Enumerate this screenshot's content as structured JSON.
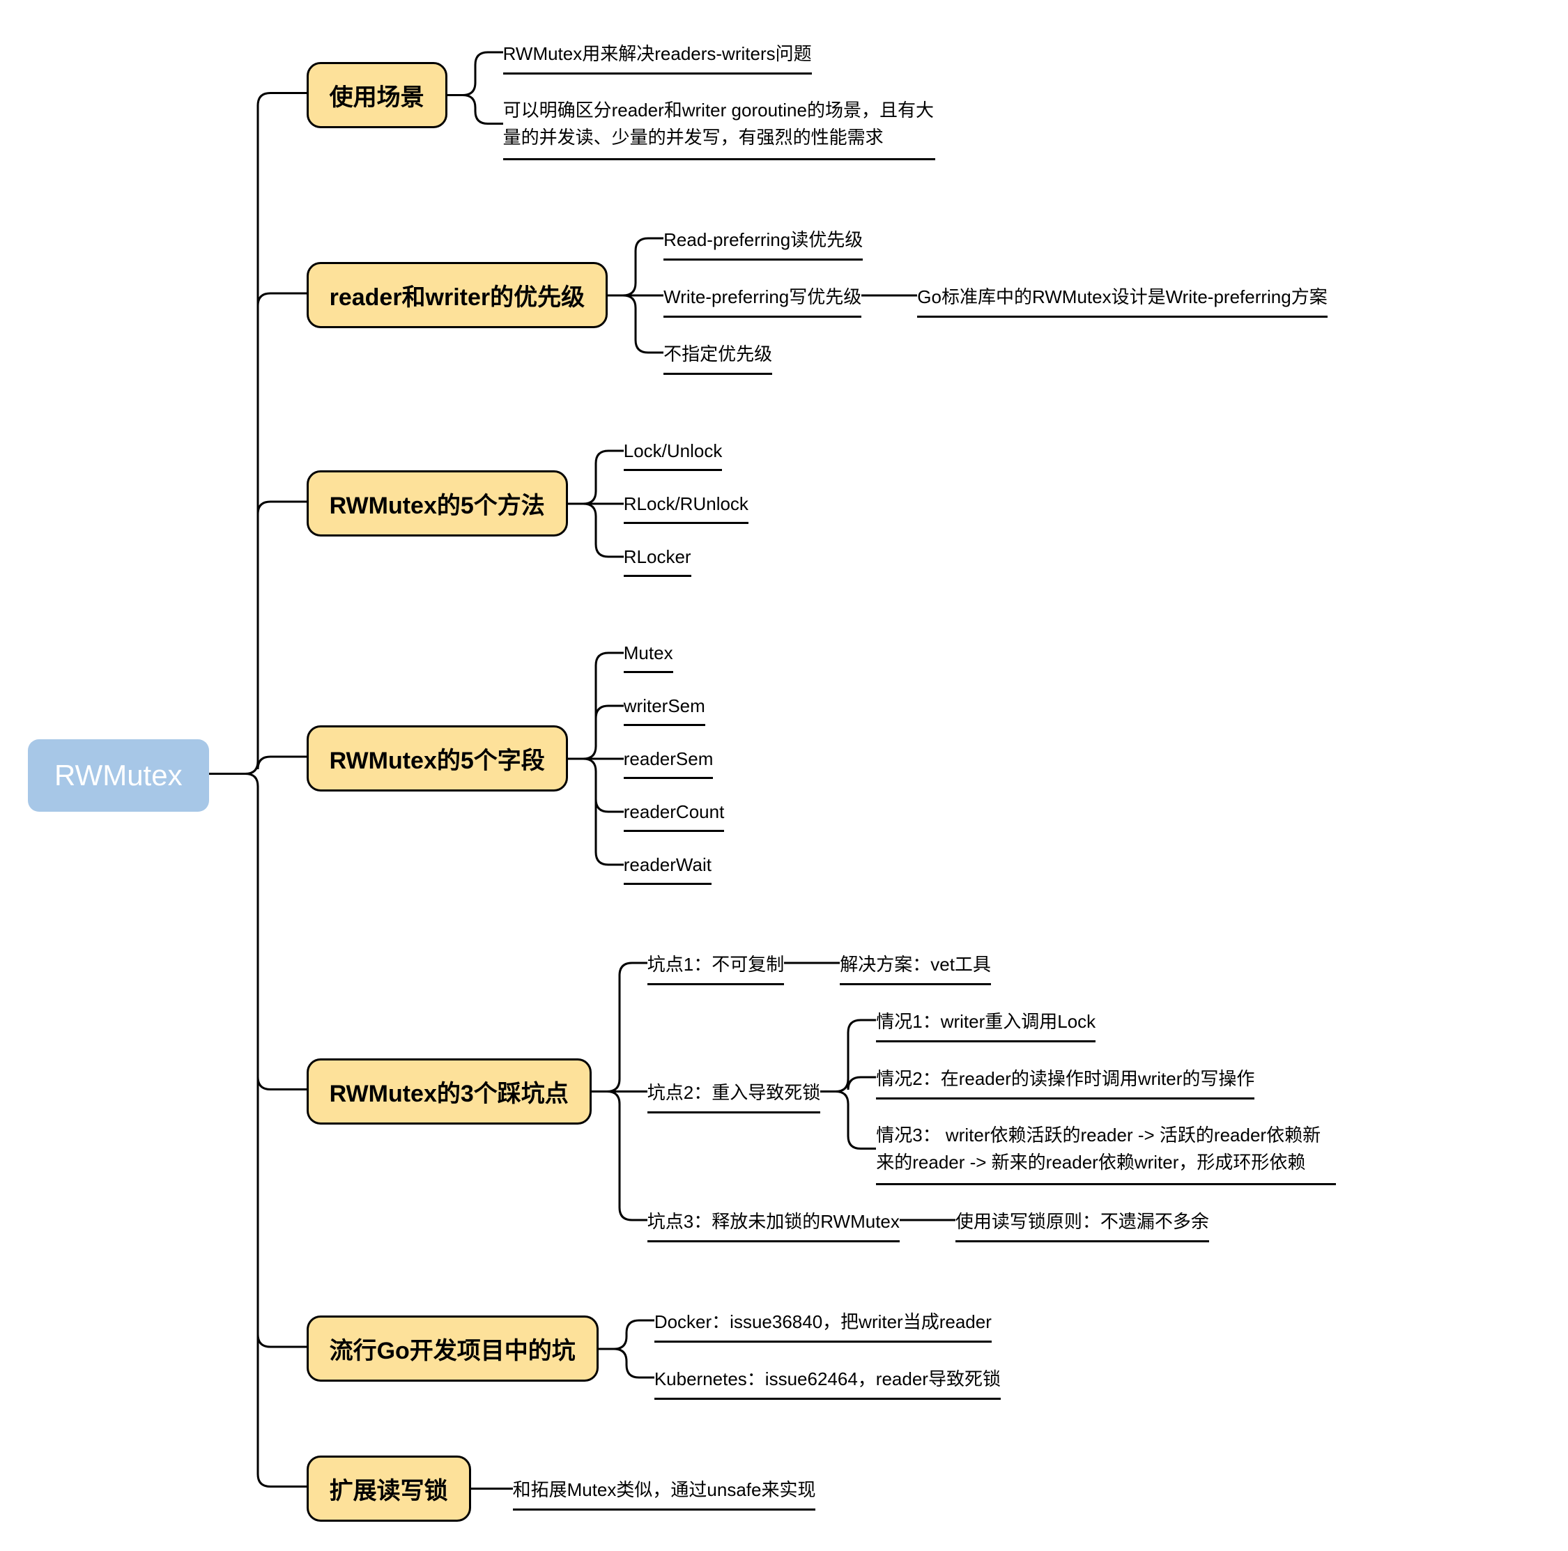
{
  "colors": {
    "root_bg": "#a7c7e7",
    "root_text": "#ffffff",
    "topic_bg": "#fde19a",
    "topic_border": "#000000",
    "line": "#000000",
    "text": "#000000",
    "background": "#ffffff"
  },
  "root": "RWMutex",
  "branches": [
    {
      "title": "使用场景",
      "leaves": [
        {
          "text": "RWMutex用来解决readers-writers问题"
        },
        {
          "text": "可以明确区分reader和writer goroutine的场景，且有大量的并发读、少量的并发写，有强烈的性能需求",
          "wrap": true
        }
      ]
    },
    {
      "title": "reader和writer的优先级",
      "leaves": [
        {
          "text": "Read-preferring读优先级"
        },
        {
          "text": "Write-preferring写优先级",
          "sub": [
            {
              "text": "Go标准库中的RWMutex设计是Write-preferring方案"
            }
          ]
        },
        {
          "text": "不指定优先级"
        }
      ]
    },
    {
      "title": "RWMutex的5个方法",
      "leaves": [
        {
          "text": "Lock/Unlock"
        },
        {
          "text": "RLock/RUnlock"
        },
        {
          "text": "RLocker"
        }
      ]
    },
    {
      "title": "RWMutex的5个字段",
      "leaves": [
        {
          "text": "Mutex"
        },
        {
          "text": "writerSem"
        },
        {
          "text": "readerSem"
        },
        {
          "text": "readerCount"
        },
        {
          "text": "readerWait"
        }
      ]
    },
    {
      "title": "RWMutex的3个踩坑点",
      "leaves": [
        {
          "text": "坑点1：不可复制",
          "sub": [
            {
              "text": "解决方案：vet工具"
            }
          ]
        },
        {
          "text": "坑点2：重入导致死锁",
          "sub": [
            {
              "text": "情况1：writer重入调用Lock"
            },
            {
              "text": "情况2：在reader的读操作时调用writer的写操作"
            },
            {
              "text": "情况3： writer依赖活跃的reader -> 活跃的reader依赖新来的reader -> 新来的reader依赖writer，形成环形依赖",
              "wrap": true
            }
          ]
        },
        {
          "text": "坑点3：释放未加锁的RWMutex",
          "sub": [
            {
              "text": "使用读写锁原则：不遗漏不多余"
            }
          ]
        }
      ]
    },
    {
      "title": "流行Go开发项目中的坑",
      "leaves": [
        {
          "text": "Docker：issue36840，把writer当成reader"
        },
        {
          "text": "Kubernetes：issue62464，reader导致死锁"
        }
      ]
    },
    {
      "title": "扩展读写锁",
      "single_leaf": "和拓展Mutex类似，通过unsafe来实现"
    }
  ]
}
